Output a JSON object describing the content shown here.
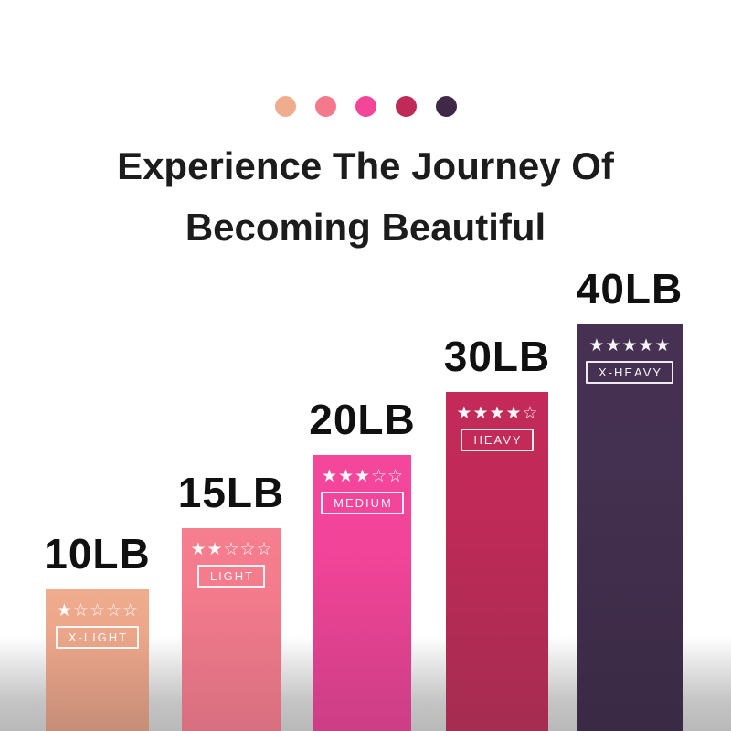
{
  "page": {
    "background_top": "#FFFFFF",
    "background_bottom": "#B9B9B9"
  },
  "palette_dots": {
    "colors": [
      "#EFAC8E",
      "#F5798C",
      "#F34699",
      "#C02A58",
      "#3F2947"
    ]
  },
  "title": {
    "line1": "Experience The Journey Of",
    "line2": "Becoming Beautiful"
  },
  "chart_data": {
    "type": "bar",
    "title": "Experience The Journey Of Becoming Beautiful",
    "categories": [
      "10LB",
      "15LB",
      "20LB",
      "30LB",
      "40LB"
    ],
    "values": [
      10,
      15,
      20,
      30,
      40
    ],
    "unit": "LB",
    "ylim": [
      0,
      40
    ],
    "grid": false,
    "legend": false,
    "bars": [
      {
        "label": "10LB",
        "value": 10,
        "level": "X-LIGHT",
        "rating": 1,
        "rating_max": 5,
        "stars": "★☆☆☆☆",
        "color_top": "#F0AC8F",
        "color_bottom": "#C68D78"
      },
      {
        "label": "15LB",
        "value": 15,
        "level": "LIGHT",
        "rating": 2,
        "rating_max": 5,
        "stars": "★★☆☆☆",
        "color_top": "#F57E8F",
        "color_bottom": "#D76F80"
      },
      {
        "label": "20LB",
        "value": 20,
        "level": "MEDIUM",
        "rating": 3,
        "rating_max": 5,
        "stars": "★★★☆☆",
        "color_top": "#F4479B",
        "color_bottom": "#CC3E86"
      },
      {
        "label": "30LB",
        "value": 30,
        "level": "HEAVY",
        "rating": 4,
        "rating_max": 5,
        "stars": "★★★★☆",
        "color_top": "#C32A59",
        "color_bottom": "#A52C52"
      },
      {
        "label": "40LB",
        "value": 40,
        "level": "X-HEAVY",
        "rating": 5,
        "rating_max": 5,
        "stars": "★★★★★",
        "color_top": "#463152",
        "color_bottom": "#3A2A45"
      }
    ]
  }
}
